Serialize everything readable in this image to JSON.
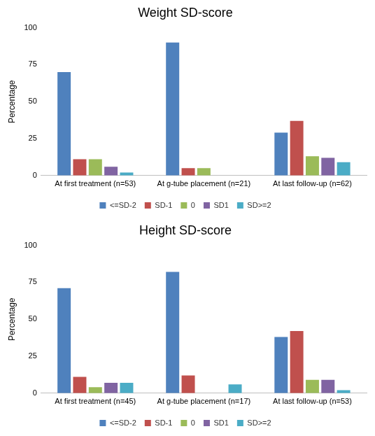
{
  "chart_data": [
    {
      "type": "bar",
      "title": "Weight SD-score",
      "y_label": "Percentage",
      "categories": [
        "At first treatment (n=53)",
        "At g-tube placement (n=21)",
        "At last follow-up (n=62)"
      ],
      "series": [
        {
          "name": "<=SD-2",
          "color": "#4f81bd",
          "values": [
            70,
            90,
            29
          ]
        },
        {
          "name": "SD-1",
          "color": "#c0504d",
          "values": [
            11,
            5,
            37
          ]
        },
        {
          "name": "0",
          "color": "#9bbb59",
          "values": [
            11,
            5,
            13
          ]
        },
        {
          "name": "SD1",
          "color": "#8064a2",
          "values": [
            6,
            0,
            12
          ]
        },
        {
          "name": "SD>=2",
          "color": "#4bacc6",
          "values": [
            2,
            0,
            9
          ]
        }
      ],
      "ylim": [
        0,
        100
      ],
      "yticks": [
        0,
        25,
        50,
        75,
        100
      ],
      "grid": false,
      "legend": "bottom"
    },
    {
      "type": "bar",
      "title": "Height SD-score",
      "y_label": "Percentage",
      "categories": [
        "At first treatment (n=45)",
        "At g-tube placement (n=17)",
        "At last follow-up (n=53)"
      ],
      "series": [
        {
          "name": "<=SD-2",
          "color": "#4f81bd",
          "values": [
            71,
            82,
            38
          ]
        },
        {
          "name": "SD-1",
          "color": "#c0504d",
          "values": [
            11,
            12,
            42
          ]
        },
        {
          "name": "0",
          "color": "#9bbb59",
          "values": [
            4,
            0,
            9
          ]
        },
        {
          "name": "SD1",
          "color": "#8064a2",
          "values": [
            7,
            0,
            9
          ]
        },
        {
          "name": "SD>=2",
          "color": "#4bacc6",
          "values": [
            7,
            6,
            2
          ]
        }
      ],
      "ylim": [
        0,
        100
      ],
      "yticks": [
        0,
        25,
        50,
        75,
        100
      ],
      "grid": false,
      "legend": "bottom"
    }
  ]
}
